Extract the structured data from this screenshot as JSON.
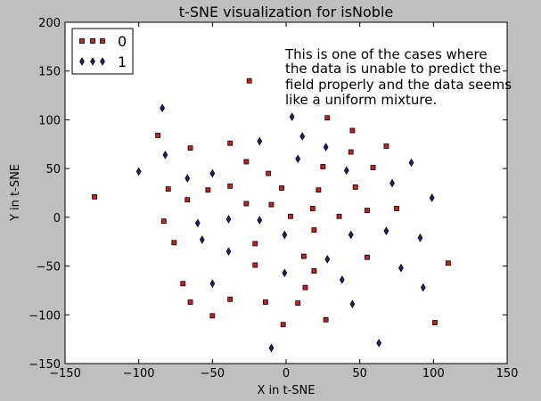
{
  "chart_data": {
    "type": "scatter",
    "title": "t-SNE visualization for isNoble",
    "xlabel": "X in t-SNE",
    "ylabel": "Y in t-SNE",
    "xlim": [
      -150,
      150
    ],
    "ylim": [
      -150,
      200
    ],
    "xticks": [
      -150,
      -100,
      -50,
      0,
      50,
      100,
      150
    ],
    "yticks": [
      -150,
      -100,
      -50,
      0,
      50,
      100,
      150,
      200
    ],
    "grid": false,
    "legend_position": "top-left",
    "annotation": [
      "This is one of the cases where",
      "the data is unable to predict the",
      "field properly and the data seems",
      "like a uniform mixture."
    ],
    "series": [
      {
        "name": "0",
        "marker": "square",
        "color": "#cc1f1f",
        "points": [
          [
            -25,
            140
          ],
          [
            -130,
            21
          ],
          [
            -87,
            84
          ],
          [
            -65,
            71
          ],
          [
            -38,
            76
          ],
          [
            -27,
            57
          ],
          [
            -12,
            45
          ],
          [
            -80,
            29
          ],
          [
            -67,
            18
          ],
          [
            -53,
            28
          ],
          [
            -38,
            32
          ],
          [
            -27,
            14
          ],
          [
            -10,
            13
          ],
          [
            -3,
            30
          ],
          [
            3,
            1
          ],
          [
            -83,
            -4
          ],
          [
            -76,
            -26
          ],
          [
            -21,
            -27
          ],
          [
            -21,
            -49
          ],
          [
            -70,
            -68
          ],
          [
            -65,
            -87
          ],
          [
            -50,
            -101
          ],
          [
            -38,
            -84
          ],
          [
            -14,
            -87
          ],
          [
            -2,
            -110
          ],
          [
            8,
            -88
          ],
          [
            12,
            -40
          ],
          [
            13,
            -72
          ],
          [
            19,
            -55
          ],
          [
            18,
            9
          ],
          [
            19,
            -13
          ],
          [
            22,
            28
          ],
          [
            25,
            52
          ],
          [
            28,
            102
          ],
          [
            45,
            89
          ],
          [
            44,
            67
          ],
          [
            47,
            31
          ],
          [
            36,
            1
          ],
          [
            55,
            7
          ],
          [
            59,
            51
          ],
          [
            68,
            73
          ],
          [
            75,
            9
          ],
          [
            55,
            -41
          ],
          [
            27,
            -105
          ],
          [
            101,
            -108
          ],
          [
            110,
            -47
          ]
        ]
      },
      {
        "name": "1",
        "marker": "diamond",
        "color": "#1f1f7a",
        "points": [
          [
            -84,
            112
          ],
          [
            -18,
            78
          ],
          [
            4,
            103
          ],
          [
            11,
            83
          ],
          [
            -82,
            64
          ],
          [
            -100,
            47
          ],
          [
            -67,
            40
          ],
          [
            -50,
            45
          ],
          [
            -60,
            -6
          ],
          [
            -57,
            -23
          ],
          [
            -39,
            -2
          ],
          [
            -39,
            -35
          ],
          [
            -50,
            -68
          ],
          [
            -18,
            -3
          ],
          [
            -1,
            -18
          ],
          [
            -1,
            -57
          ],
          [
            8,
            60
          ],
          [
            27,
            72
          ],
          [
            41,
            48
          ],
          [
            44,
            -18
          ],
          [
            28,
            -43
          ],
          [
            38,
            -64
          ],
          [
            45,
            -89
          ],
          [
            -10,
            -134
          ],
          [
            63,
            -129
          ],
          [
            72,
            35
          ],
          [
            68,
            -14
          ],
          [
            78,
            -52
          ],
          [
            85,
            56
          ],
          [
            91,
            -21
          ],
          [
            93,
            -72
          ],
          [
            99,
            20
          ]
        ]
      }
    ]
  }
}
